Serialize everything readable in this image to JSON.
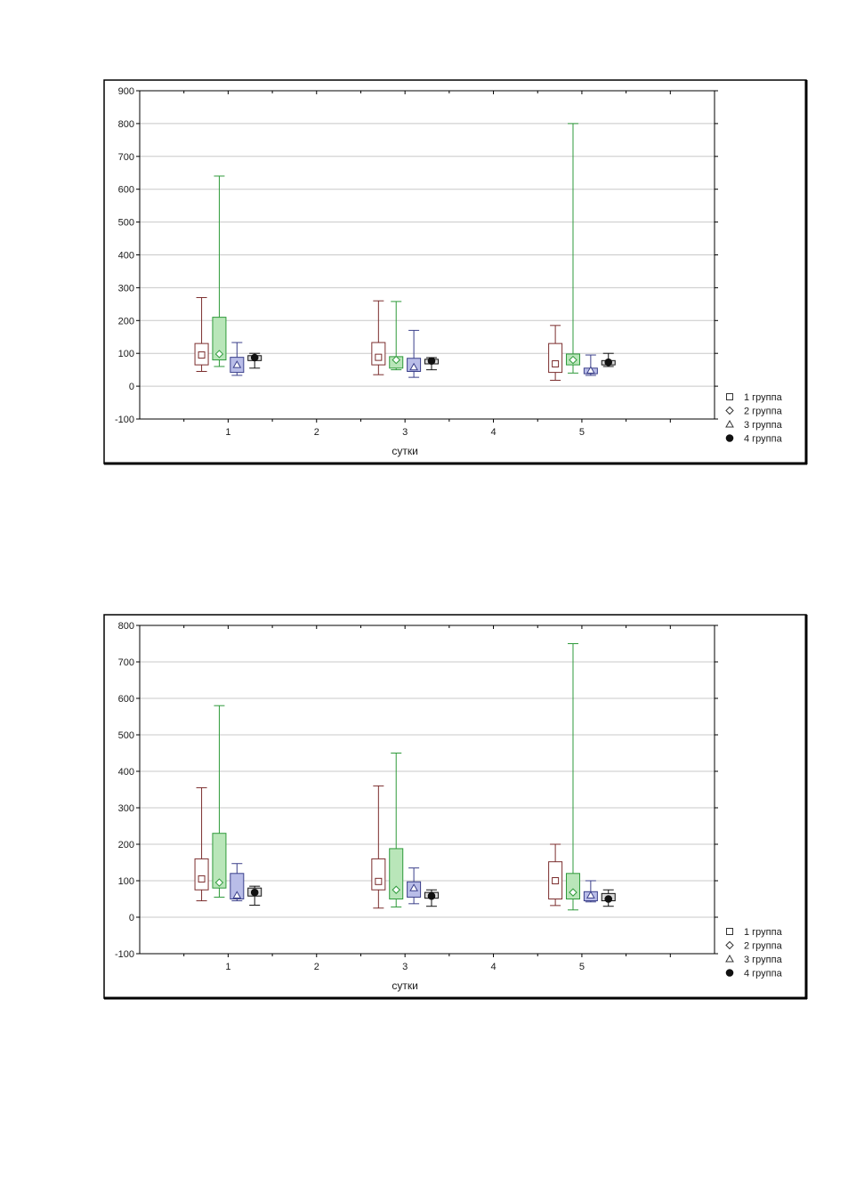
{
  "colors": {
    "group1": "#7b2d2d",
    "group1_fill": "#ffffff",
    "group2": "#2e9a3a",
    "group2_fill": "#b9e6b9",
    "group3": "#3a3f8a",
    "group3_fill": "#b9bde8",
    "group4": "#111111",
    "group4_fill": "#d9d9d9",
    "grid": "#c8c8c8"
  },
  "chart_data": [
    {
      "type": "box",
      "xlabel": "сутки",
      "ylabel": "",
      "ylim": [
        -100,
        900
      ],
      "yticks": [
        900,
        800,
        700,
        600,
        500,
        400,
        300,
        200,
        100,
        0,
        -100
      ],
      "xlim": [
        0,
        6.5
      ],
      "xticks": [
        1,
        2,
        3,
        4,
        5
      ],
      "grid": true,
      "legend": "bottom-right",
      "series": [
        {
          "name": "1 группа",
          "marker": "square-icon",
          "offset": -0.3,
          "boxes": [
            {
              "x": 1,
              "min": 45,
              "q1": 65,
              "median": 95,
              "q3": 130,
              "max": 270
            },
            {
              "x": 3,
              "min": 35,
              "q1": 65,
              "median": 88,
              "q3": 133,
              "max": 260
            },
            {
              "x": 5,
              "min": 18,
              "q1": 42,
              "median": 68,
              "q3": 130,
              "max": 185
            }
          ]
        },
        {
          "name": "2 группа",
          "marker": "diamond-icon",
          "offset": -0.1,
          "boxes": [
            {
              "x": 1,
              "min": 60,
              "q1": 80,
              "median": 98,
              "q3": 210,
              "max": 640
            },
            {
              "x": 3,
              "min": 50,
              "q1": 55,
              "median": 80,
              "q3": 90,
              "max": 258
            },
            {
              "x": 5,
              "min": 40,
              "q1": 65,
              "median": 80,
              "q3": 98,
              "max": 800
            }
          ]
        },
        {
          "name": "3 группа",
          "marker": "triangle-icon",
          "offset": 0.1,
          "boxes": [
            {
              "x": 1,
              "min": 33,
              "q1": 42,
              "median": 65,
              "q3": 88,
              "max": 133
            },
            {
              "x": 3,
              "min": 27,
              "q1": 45,
              "median": 58,
              "q3": 85,
              "max": 170
            },
            {
              "x": 5,
              "min": 33,
              "q1": 38,
              "median": 48,
              "q3": 55,
              "max": 95
            }
          ]
        },
        {
          "name": "4 группа",
          "marker": "filled-circle-icon",
          "offset": 0.3,
          "boxes": [
            {
              "x": 1,
              "min": 55,
              "q1": 78,
              "median": 87,
              "q3": 93,
              "max": 100
            },
            {
              "x": 3,
              "min": 50,
              "q1": 68,
              "median": 77,
              "q3": 82,
              "max": 87
            },
            {
              "x": 5,
              "min": 60,
              "q1": 65,
              "median": 73,
              "q3": 78,
              "max": 100
            }
          ]
        }
      ]
    },
    {
      "type": "box",
      "xlabel": "сутки",
      "ylabel": "",
      "ylim": [
        -100,
        800
      ],
      "yticks": [
        800,
        700,
        600,
        500,
        400,
        300,
        200,
        100,
        0,
        -100
      ],
      "xlim": [
        0,
        6.5
      ],
      "xticks": [
        1,
        2,
        3,
        4,
        5
      ],
      "grid": true,
      "legend": "bottom-right",
      "series": [
        {
          "name": "1 группа",
          "marker": "square-icon",
          "offset": -0.3,
          "boxes": [
            {
              "x": 1,
              "min": 45,
              "q1": 75,
              "median": 105,
              "q3": 160,
              "max": 355
            },
            {
              "x": 3,
              "min": 25,
              "q1": 75,
              "median": 98,
              "q3": 160,
              "max": 360
            },
            {
              "x": 5,
              "min": 32,
              "q1": 50,
              "median": 100,
              "q3": 152,
              "max": 200
            }
          ]
        },
        {
          "name": "2 группа",
          "marker": "diamond-icon",
          "offset": -0.1,
          "boxes": [
            {
              "x": 1,
              "min": 55,
              "q1": 80,
              "median": 95,
              "q3": 230,
              "max": 580
            },
            {
              "x": 3,
              "min": 28,
              "q1": 50,
              "median": 75,
              "q3": 188,
              "max": 450
            },
            {
              "x": 5,
              "min": 20,
              "q1": 50,
              "median": 68,
              "q3": 120,
              "max": 750
            }
          ]
        },
        {
          "name": "3 группа",
          "marker": "triangle-icon",
          "offset": 0.1,
          "boxes": [
            {
              "x": 1,
              "min": 45,
              "q1": 50,
              "median": 60,
              "q3": 120,
              "max": 147
            },
            {
              "x": 3,
              "min": 37,
              "q1": 55,
              "median": 80,
              "q3": 97,
              "max": 135
            },
            {
              "x": 5,
              "min": 42,
              "q1": 45,
              "median": 60,
              "q3": 70,
              "max": 100
            }
          ]
        },
        {
          "name": "4 группа",
          "marker": "filled-circle-icon",
          "offset": 0.3,
          "boxes": [
            {
              "x": 1,
              "min": 33,
              "q1": 58,
              "median": 68,
              "q3": 80,
              "max": 85
            },
            {
              "x": 3,
              "min": 30,
              "q1": 52,
              "median": 58,
              "q3": 68,
              "max": 75
            },
            {
              "x": 5,
              "min": 30,
              "q1": 45,
              "median": 50,
              "q3": 65,
              "max": 75
            }
          ]
        }
      ]
    }
  ]
}
